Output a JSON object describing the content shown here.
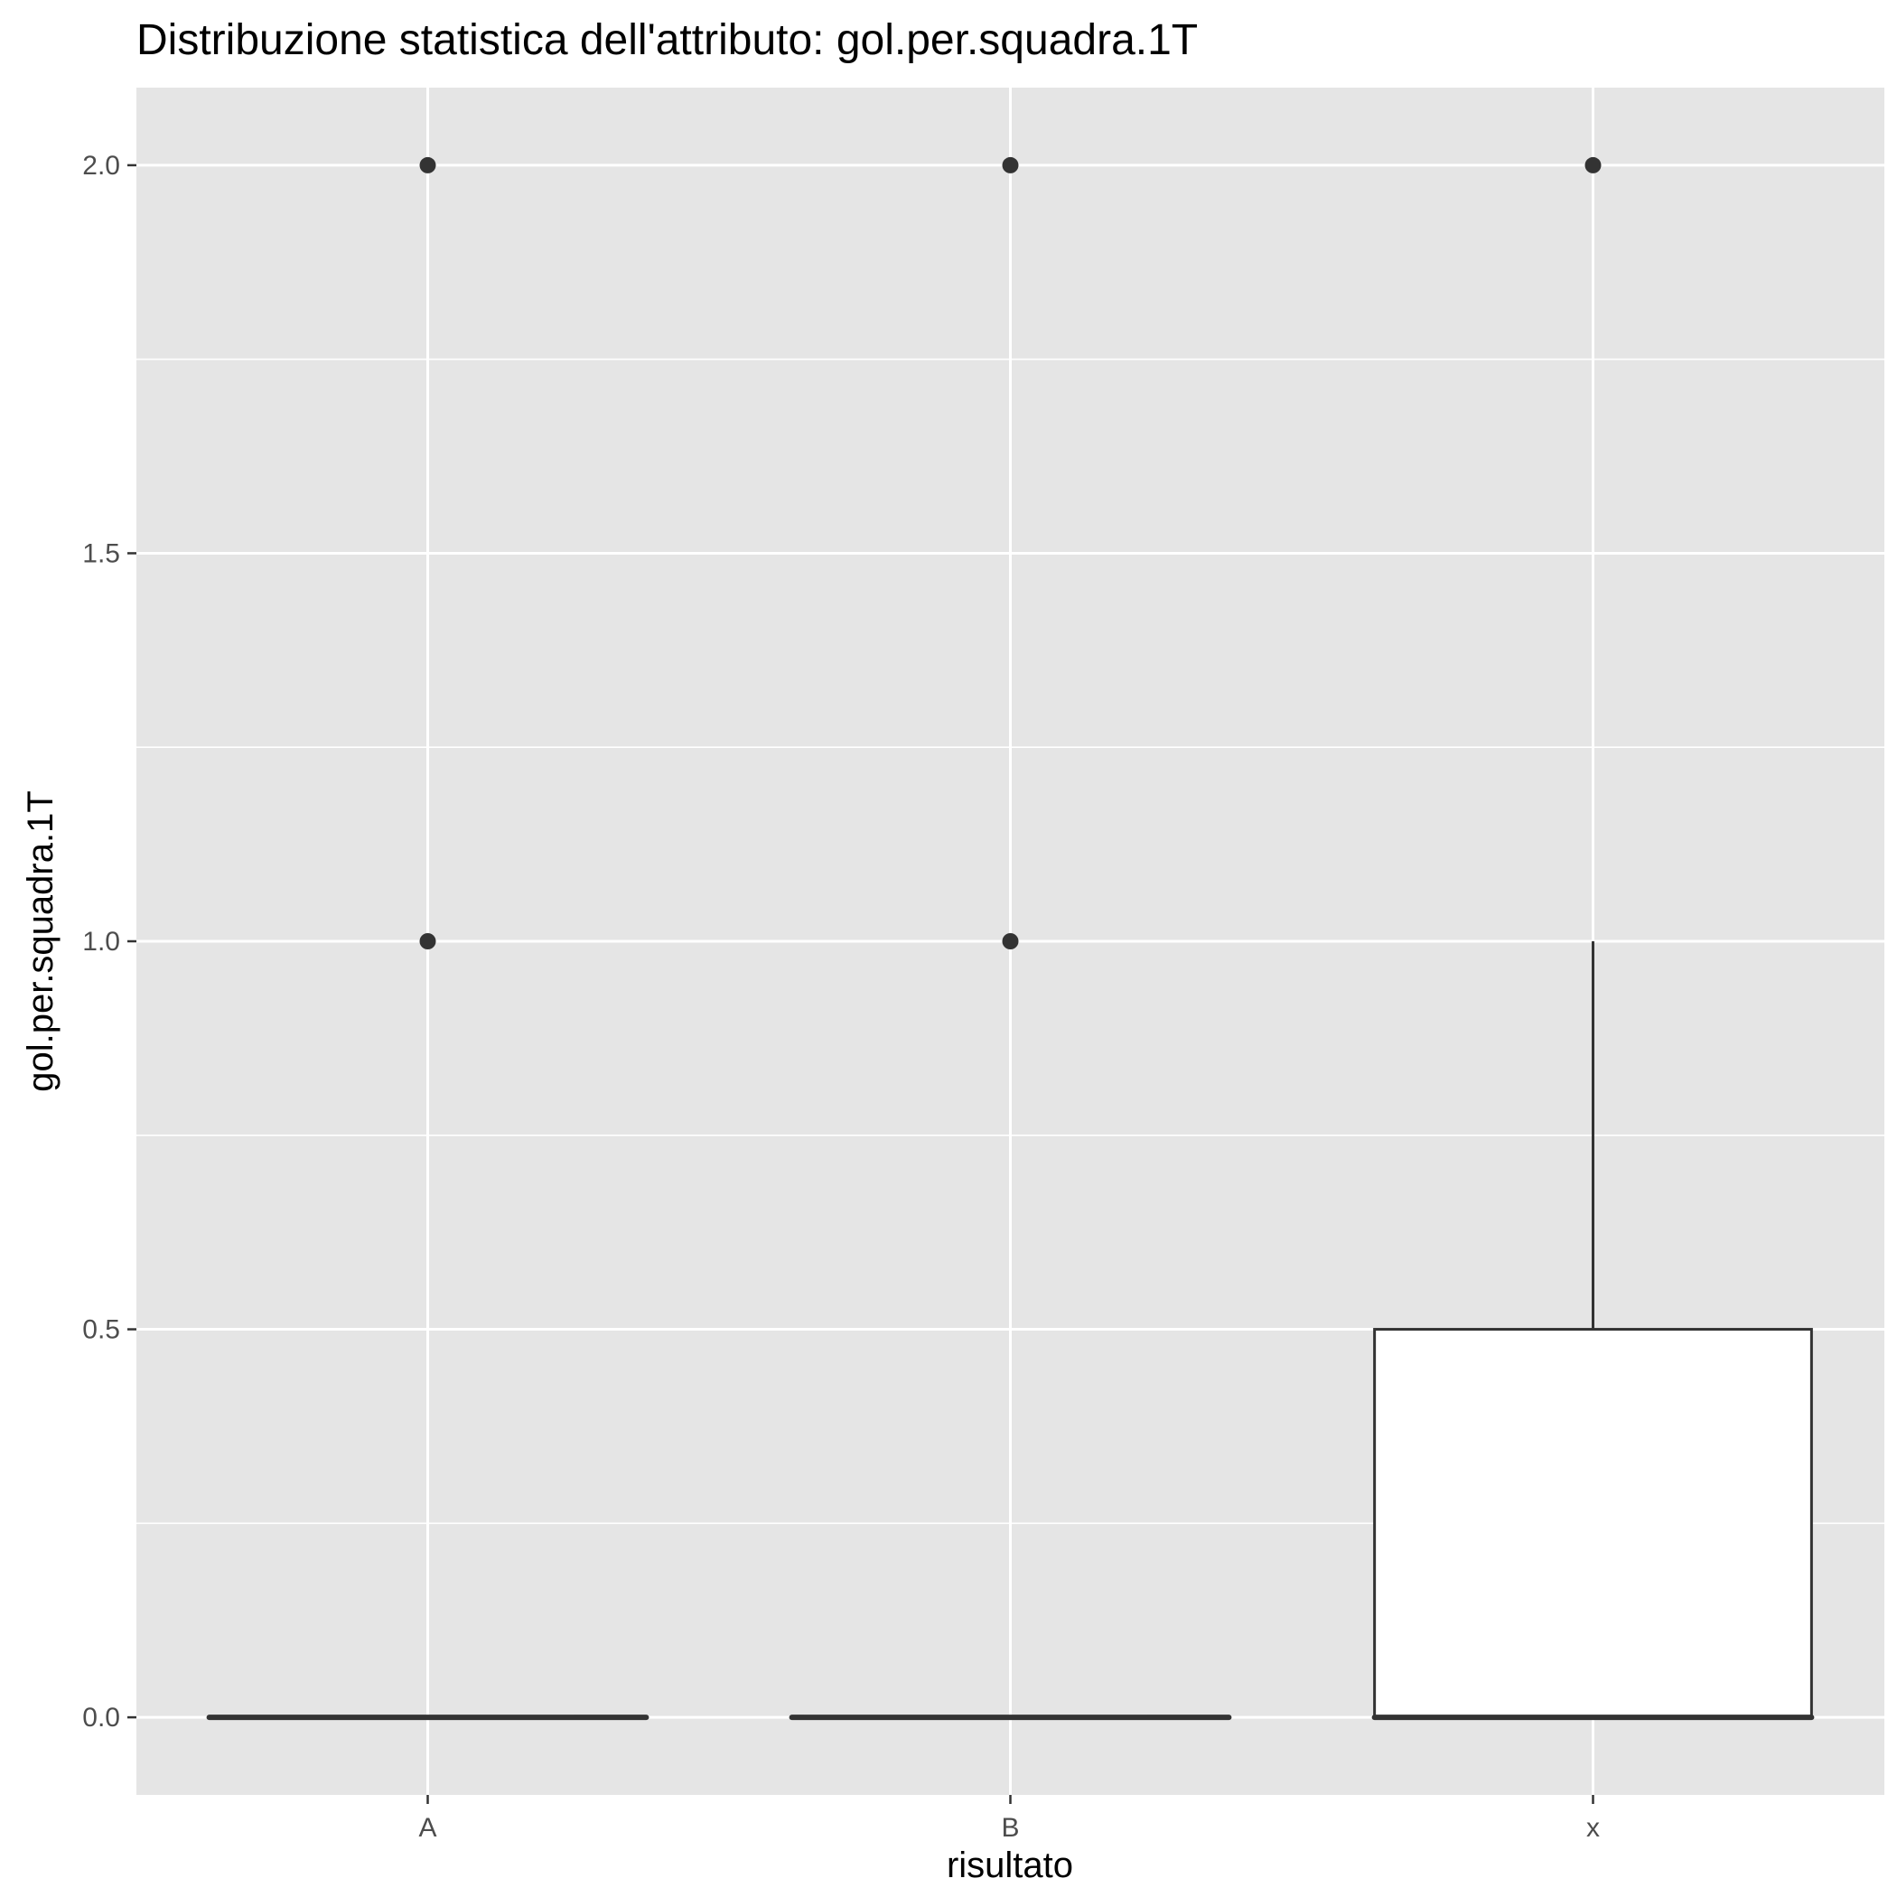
{
  "chart_data": {
    "type": "boxplot",
    "title": "Distribuzione statistica dell'attributo: gol.per.squadra.1T",
    "xlabel": "risultato",
    "ylabel": "gol.per.squadra.1T",
    "categories": [
      "A",
      "B",
      "x"
    ],
    "ylim": [
      -0.1,
      2.1
    ],
    "y_ticks": [
      0.0,
      0.5,
      1.0,
      1.5,
      2.0
    ],
    "y_tick_labels": [
      "0.0",
      "0.5",
      "1.0",
      "1.5",
      "2.0"
    ],
    "grid": true,
    "boxes": [
      {
        "category": "A",
        "min": 0,
        "q1": 0,
        "median": 0,
        "q3": 0,
        "max": 0,
        "outliers": [
          1,
          2
        ]
      },
      {
        "category": "B",
        "min": 0,
        "q1": 0,
        "median": 0,
        "q3": 0,
        "max": 0,
        "outliers": [
          1,
          2
        ]
      },
      {
        "category": "x",
        "min": 0,
        "q1": 0,
        "median": 0,
        "q3": 0.5,
        "max": 1,
        "outliers": [
          2
        ]
      }
    ],
    "colors": {
      "panel_background": "#e5e5e5",
      "grid": "#ffffff",
      "box_fill": "#ffffff",
      "box_line": "#333333",
      "outlier": "#333333"
    }
  }
}
